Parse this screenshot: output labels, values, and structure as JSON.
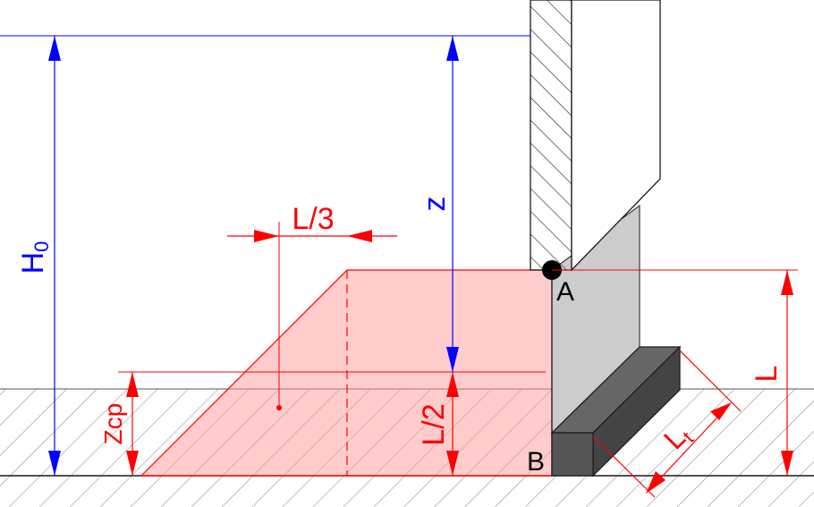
{
  "diagram": {
    "labels": {
      "h0": "H",
      "h0_sub": "0",
      "z": "z",
      "l_third": "L/3",
      "l_half": "L/2",
      "zcp": "Zcp",
      "point_a": "A",
      "point_b": "B",
      "l": "L",
      "lt": "L",
      "lt_sub": "t"
    },
    "colors": {
      "red": "#ff0000",
      "blue": "#0000ff",
      "pressure_fill": "#ffc8c8",
      "wall_gray": "#cccccc",
      "toe_dark": "#555555",
      "line_dark": "#1a1a1a",
      "hatch": "#8a8a8a"
    }
  }
}
